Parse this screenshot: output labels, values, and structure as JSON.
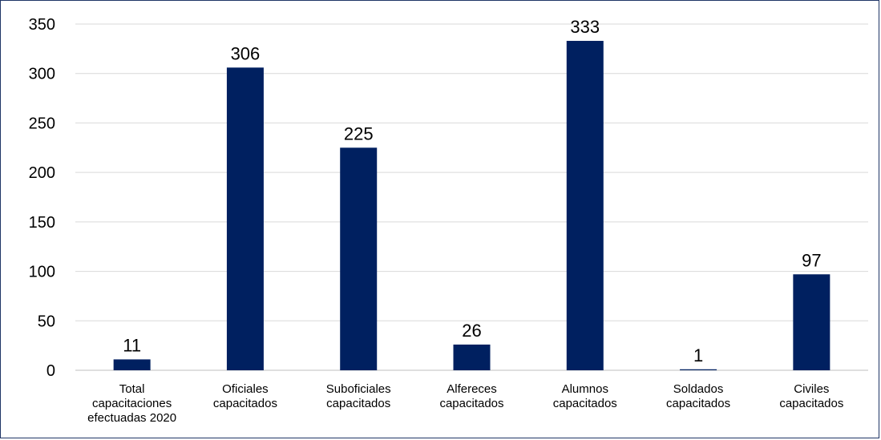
{
  "chart_data": {
    "type": "bar",
    "title": "",
    "xlabel": "",
    "ylabel": "",
    "ylim": [
      0,
      350
    ],
    "yticks": [
      0,
      50,
      100,
      150,
      200,
      250,
      300,
      350
    ],
    "grid": true,
    "bar_color": "#002060",
    "categories": [
      [
        "Total",
        "capacitaciones",
        "efectuadas 2020"
      ],
      [
        "Oficiales",
        "capacitados"
      ],
      [
        "Suboficiales",
        "capacitados"
      ],
      [
        "Alfereces",
        "capacitados"
      ],
      [
        "Alumnos",
        "capacitados"
      ],
      [
        "Soldados",
        "capacitados"
      ],
      [
        "Civiles",
        "capacitados"
      ]
    ],
    "values": [
      11,
      306,
      225,
      26,
      333,
      1,
      97
    ]
  }
}
